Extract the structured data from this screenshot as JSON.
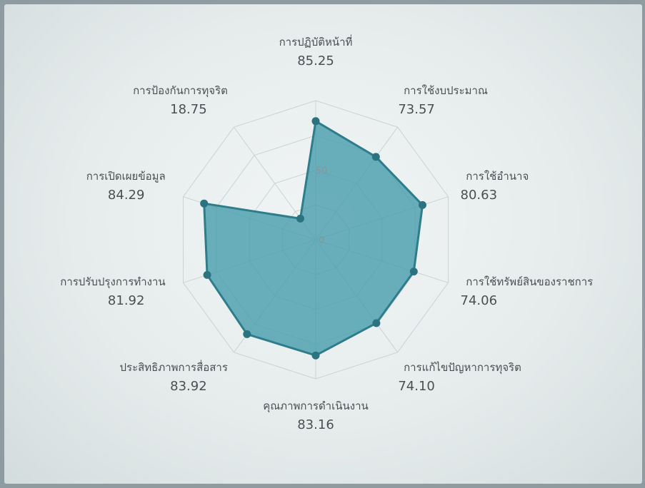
{
  "chart_data": {
    "type": "radar",
    "title": "",
    "categories": [
      "การปฏิบัติหน้าที่",
      "การใช้งบประมาณ",
      "การใช้อำนาจ",
      "การใช้ทรัพย์สินของราชการ",
      "การแก้ไขปัญหาการทุจริต",
      "คุณภาพการดำเนินงาน",
      "ประสิทธิภาพการสื่อสาร",
      "การปรับปรุงการทำงาน",
      "การเปิดเผยข้อมูล",
      "การป้องกันการทุจริต"
    ],
    "values": [
      85.25,
      73.57,
      80.63,
      74.06,
      74.1,
      83.16,
      83.92,
      81.92,
      84.29,
      18.75
    ],
    "value_labels": [
      "85.25",
      "73.57",
      "80.63",
      "74.06",
      "74.10",
      "83.16",
      "83.92",
      "81.92",
      "84.29",
      "18.75"
    ],
    "radial_ticks": [
      "0",
      "50"
    ],
    "rlim": [
      0,
      100
    ],
    "grid": true,
    "colors": {
      "fill": "#4a9fad",
      "stroke": "#2e7d8c",
      "point": "#2c7381",
      "grid": "#c9d3d5"
    }
  }
}
